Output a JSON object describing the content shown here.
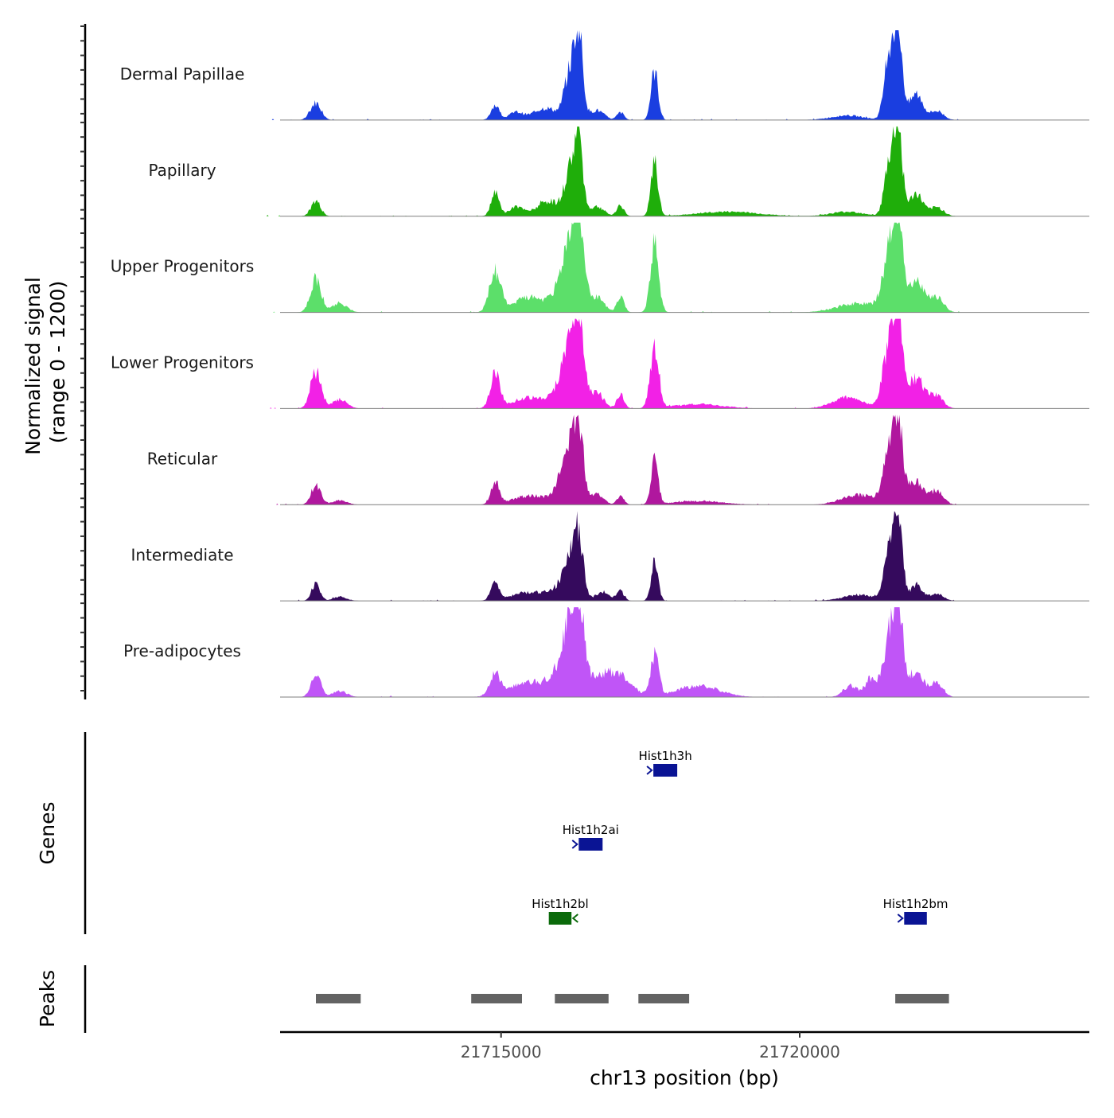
{
  "chart_data": {
    "type": "area",
    "ylabel_line1": "Normalized signal",
    "ylabel_line2": "(range 0 - 1200)",
    "ylim": [
      0,
      1200
    ],
    "xlabel": "chr13 position (bp)",
    "xlim": [
      21711300,
      21724850
    ],
    "x_ticks": [
      21715000,
      21720000
    ],
    "x_tick_labels": [
      "21715000",
      "21720000"
    ],
    "baseline_color": "#7f7f7f",
    "tracks": [
      {
        "name": "Dermal Papillae",
        "color": "#1a3ee0",
        "peaks": [
          [
            21711900,
            230,
            90
          ],
          [
            21714900,
            200,
            70
          ],
          [
            21715250,
            100,
            120
          ],
          [
            21715750,
            160,
            200
          ],
          [
            21716300,
            1150,
            70
          ],
          [
            21716150,
            600,
            90
          ],
          [
            21716600,
            130,
            120
          ],
          [
            21717000,
            100,
            60
          ],
          [
            21717570,
            650,
            60
          ],
          [
            21720800,
            60,
            280
          ],
          [
            21721650,
            1200,
            70
          ],
          [
            21721500,
            900,
            80
          ],
          [
            21721950,
            350,
            110
          ],
          [
            21722300,
            120,
            110
          ]
        ]
      },
      {
        "name": "Papillary",
        "color": "#1fae0a",
        "peaks": [
          [
            21711900,
            200,
            80
          ],
          [
            21714900,
            300,
            70
          ],
          [
            21715250,
            120,
            120
          ],
          [
            21715800,
            200,
            200
          ],
          [
            21716300,
            1000,
            70
          ],
          [
            21716150,
            550,
            90
          ],
          [
            21716600,
            130,
            120
          ],
          [
            21717000,
            140,
            60
          ],
          [
            21717570,
            700,
            60
          ],
          [
            21718800,
            60,
            500
          ],
          [
            21720800,
            60,
            280
          ],
          [
            21721650,
            1150,
            70
          ],
          [
            21721500,
            700,
            80
          ],
          [
            21721950,
            300,
            110
          ],
          [
            21722300,
            120,
            110
          ]
        ]
      },
      {
        "name": "Upper Progenitors",
        "color": "#5cdf6a",
        "peaks": [
          [
            21711900,
            450,
            90
          ],
          [
            21712300,
            120,
            120
          ],
          [
            21714900,
            530,
            90
          ],
          [
            21715500,
            200,
            300
          ],
          [
            21716000,
            300,
            120
          ],
          [
            21716300,
            1150,
            90
          ],
          [
            21716150,
            700,
            100
          ],
          [
            21716600,
            200,
            120
          ],
          [
            21717000,
            200,
            60
          ],
          [
            21717570,
            900,
            70
          ],
          [
            21721000,
            120,
            350
          ],
          [
            21721650,
            1100,
            80
          ],
          [
            21721500,
            700,
            110
          ],
          [
            21721950,
            400,
            140
          ],
          [
            21722300,
            200,
            110
          ]
        ]
      },
      {
        "name": "Lower Progenitors",
        "color": "#f221e6",
        "peaks": [
          [
            21711900,
            500,
            90
          ],
          [
            21712300,
            120,
            120
          ],
          [
            21714900,
            450,
            80
          ],
          [
            21715500,
            150,
            300
          ],
          [
            21716000,
            280,
            120
          ],
          [
            21716300,
            1150,
            90
          ],
          [
            21716150,
            650,
            100
          ],
          [
            21716600,
            220,
            110
          ],
          [
            21717000,
            200,
            60
          ],
          [
            21717570,
            850,
            70
          ],
          [
            21718300,
            60,
            400
          ],
          [
            21720800,
            150,
            250
          ],
          [
            21721650,
            1100,
            80
          ],
          [
            21721500,
            800,
            110
          ],
          [
            21721950,
            400,
            140
          ],
          [
            21722300,
            160,
            110
          ]
        ]
      },
      {
        "name": "Reticular",
        "color": "#b0179e",
        "peaks": [
          [
            21711900,
            270,
            80
          ],
          [
            21712300,
            60,
            120
          ],
          [
            21714900,
            300,
            70
          ],
          [
            21715500,
            120,
            300
          ],
          [
            21716000,
            250,
            120
          ],
          [
            21716300,
            1000,
            80
          ],
          [
            21716150,
            550,
            100
          ],
          [
            21716600,
            150,
            110
          ],
          [
            21717000,
            120,
            60
          ],
          [
            21717570,
            600,
            60
          ],
          [
            21718300,
            50,
            400
          ],
          [
            21721000,
            130,
            280
          ],
          [
            21721650,
            1000,
            80
          ],
          [
            21721500,
            650,
            100
          ],
          [
            21721950,
            300,
            140
          ],
          [
            21722300,
            170,
            110
          ]
        ]
      },
      {
        "name": "Intermediate",
        "color": "#350a5d",
        "peaks": [
          [
            21711900,
            220,
            70
          ],
          [
            21712300,
            50,
            120
          ],
          [
            21714900,
            220,
            70
          ],
          [
            21715500,
            120,
            300
          ],
          [
            21716000,
            150,
            150
          ],
          [
            21716300,
            800,
            80
          ],
          [
            21716150,
            450,
            100
          ],
          [
            21716700,
            120,
            120
          ],
          [
            21717000,
            130,
            60
          ],
          [
            21717570,
            500,
            60
          ],
          [
            21721000,
            80,
            280
          ],
          [
            21721650,
            1050,
            70
          ],
          [
            21721500,
            650,
            90
          ],
          [
            21721950,
            200,
            110
          ],
          [
            21722300,
            90,
            110
          ]
        ]
      },
      {
        "name": "Pre-adipocytes",
        "color": "#c055f7",
        "peaks": [
          [
            21711900,
            300,
            80
          ],
          [
            21712300,
            80,
            120
          ],
          [
            21714900,
            300,
            80
          ],
          [
            21715500,
            200,
            350
          ],
          [
            21716000,
            320,
            150
          ],
          [
            21716300,
            1050,
            90
          ],
          [
            21716150,
            650,
            100
          ],
          [
            21716600,
            250,
            250
          ],
          [
            21717000,
            240,
            200
          ],
          [
            21717570,
            550,
            70
          ],
          [
            21718300,
            150,
            350
          ],
          [
            21720850,
            150,
            120
          ],
          [
            21721200,
            250,
            100
          ],
          [
            21721650,
            1150,
            80
          ],
          [
            21721500,
            700,
            100
          ],
          [
            21721950,
            350,
            120
          ],
          [
            21722300,
            200,
            100
          ]
        ]
      }
    ],
    "genes_panel_label": "Genes",
    "genes": [
      {
        "name": "Hist1h3h",
        "start": 21717550,
        "end": 21717950,
        "strand": "+",
        "row": 0,
        "color": "#0a1494"
      },
      {
        "name": "Hist1h2ai",
        "start": 21716300,
        "end": 21716700,
        "strand": "+",
        "row": 1,
        "color": "#0a1494"
      },
      {
        "name": "Hist1h2bl",
        "start": 21715800,
        "end": 21716180,
        "strand": "-",
        "row": 2,
        "color": "#0b6a0b"
      },
      {
        "name": "Hist1h2bm",
        "start": 21721750,
        "end": 21722130,
        "strand": "+",
        "row": 2,
        "color": "#0a1494"
      }
    ],
    "peaks_panel_label": "Peaks",
    "peak_color": "#636363",
    "peak_regions": [
      [
        21711900,
        21712650
      ],
      [
        21714500,
        21715350
      ],
      [
        21715900,
        21716800
      ],
      [
        21717300,
        21718150
      ],
      [
        21721600,
        21722500
      ]
    ]
  }
}
